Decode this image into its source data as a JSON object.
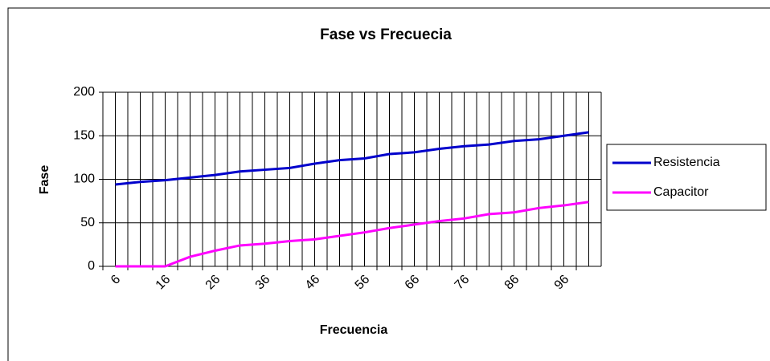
{
  "chart_data": {
    "type": "line",
    "title": "Fase vs Frecuecia",
    "x_label": "Frecuencia",
    "y_label": "Fase",
    "categories": [
      "6",
      null,
      "16",
      null,
      "26",
      null,
      "36",
      null,
      "46",
      null,
      "56",
      null,
      "66",
      null,
      "76",
      null,
      "86",
      null,
      "96",
      null
    ],
    "series": [
      {
        "name": "Resistencia",
        "color": "#0000cc",
        "values": [
          94,
          97,
          99,
          102,
          105,
          109,
          111,
          113,
          118,
          122,
          124,
          129,
          131,
          135,
          138,
          140,
          144,
          146,
          150,
          154
        ]
      },
      {
        "name": "Capacitor",
        "color": "#ff00ff",
        "values": [
          0,
          0,
          0,
          11,
          18,
          24,
          26,
          29,
          31,
          35,
          39,
          44,
          48,
          52,
          55,
          60,
          62,
          67,
          70,
          74
        ]
      }
    ],
    "ylim": [
      0,
      200
    ],
    "yticks": [
      0,
      50,
      100,
      150,
      200
    ],
    "grid": true,
    "legend": "right"
  }
}
